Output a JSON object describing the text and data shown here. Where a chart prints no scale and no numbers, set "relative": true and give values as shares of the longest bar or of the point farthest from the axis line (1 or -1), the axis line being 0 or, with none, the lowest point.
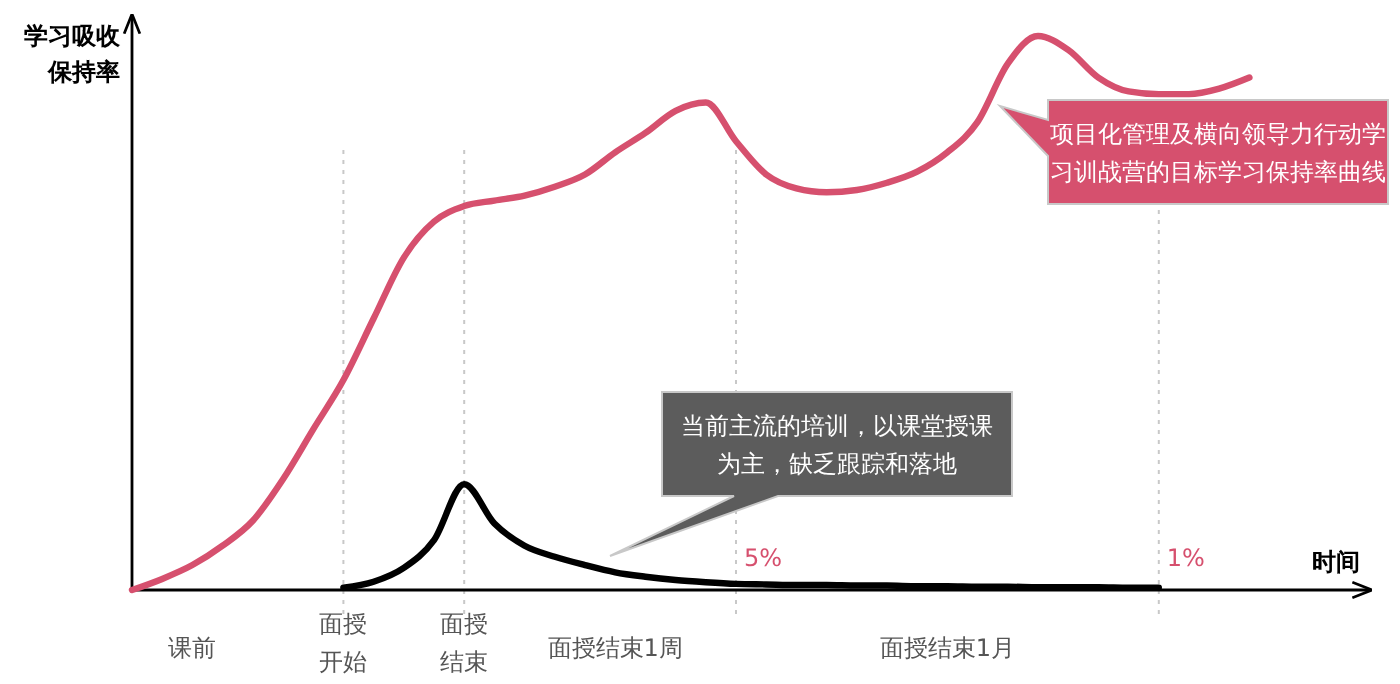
{
  "chart_data": {
    "type": "line",
    "relative": true,
    "ylabel": "学习吸收保持率",
    "xlabel": "时间",
    "categories": [
      null,
      null,
      "课前",
      null,
      null,
      null,
      null,
      "面授开始",
      null,
      null,
      null,
      "面授结束",
      null,
      null,
      null,
      null,
      "面授结束1周",
      null,
      null,
      null,
      null,
      null,
      null,
      null,
      null,
      null,
      null,
      "面授结束1月",
      null,
      null,
      null,
      null,
      null,
      null,
      null,
      null,
      null,
      null,
      null,
      null,
      null
    ],
    "series": [
      {
        "color": "#d6506e",
        "values": [
          0,
          0.02,
          0.045,
          0.08,
          0.125,
          0.2,
          0.29,
          0.379,
          0.49,
          0.6,
          0.665,
          0.693,
          0.703,
          0.712,
          0.728,
          0.75,
          0.79,
          0.825,
          0.865,
          0.88,
          0.81,
          0.75,
          0.725,
          0.718,
          0.722,
          0.735,
          0.755,
          0.79,
          0.845,
          0.95,
          1,
          0.975,
          0.925,
          0.9,
          0.895,
          0.895,
          0.905,
          0.925,
          null,
          null,
          null
        ]
      },
      {
        "color": "#000000",
        "values": [
          null,
          null,
          null,
          null,
          null,
          null,
          null,
          0.004,
          0.015,
          0.04,
          0.09,
          0.191,
          0.12,
          0.08,
          0.06,
          0.045,
          0.032,
          0.024,
          0.018,
          0.014,
          0.011,
          0.01,
          0.009,
          0.009,
          0.008,
          0.008,
          0.007,
          0.007,
          0.006,
          0.006,
          0.005,
          0.005,
          0.005,
          0.004,
          0.004,
          null,
          null,
          null,
          null,
          null,
          null
        ]
      }
    ],
    "annotations": [
      "5%",
      "1%",
      "当前主流的培训，以课堂授课为主，缺乏跟踪和落地",
      "项目化管理及横向领导力行动学习训战营的目标学习保持率曲线"
    ],
    "line_style": "solid",
    "marker": "none",
    "grid": "x"
  }
}
